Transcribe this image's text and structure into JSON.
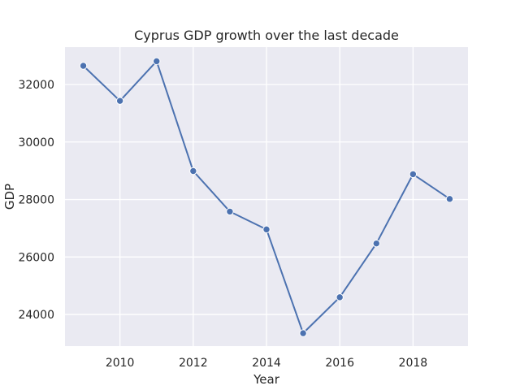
{
  "chart_data": {
    "type": "line",
    "title": "Cyprus GDP growth over the last decade",
    "xlabel": "Year",
    "ylabel": "GDP",
    "x": [
      2009,
      2010,
      2011,
      2012,
      2013,
      2014,
      2015,
      2016,
      2017,
      2018,
      2019
    ],
    "series": [
      {
        "values": [
          32650,
          31430,
          32810,
          28990,
          27580,
          26960,
          23350,
          24600,
          26470,
          28880,
          28020
        ]
      }
    ],
    "xlim": [
      2008.5,
      2019.5
    ],
    "ylim": [
      22900,
      33300
    ],
    "xticks": [
      2010,
      2012,
      2014,
      2016,
      2018
    ],
    "yticks": [
      24000,
      26000,
      28000,
      30000,
      32000
    ],
    "grid": true,
    "colors": {
      "line": "#4c72b0",
      "marker_edge": "#ffffff",
      "plot_background": "#eaeaf2",
      "grid": "#ffffff"
    }
  }
}
